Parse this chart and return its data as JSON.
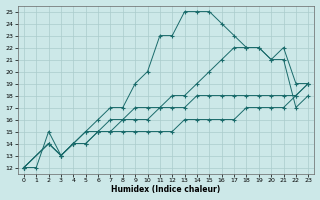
{
  "xlabel": "Humidex (Indice chaleur)",
  "bg_color": "#cce8e8",
  "grid_color": "#aacccc",
  "line_color": "#1a6b6b",
  "xlim": [
    -0.5,
    23.5
  ],
  "ylim": [
    11.5,
    25.5
  ],
  "xticks": [
    0,
    1,
    2,
    3,
    4,
    5,
    6,
    7,
    8,
    9,
    10,
    11,
    12,
    13,
    14,
    15,
    16,
    17,
    18,
    19,
    20,
    21,
    22,
    23
  ],
  "yticks": [
    12,
    13,
    14,
    15,
    16,
    17,
    18,
    19,
    20,
    21,
    22,
    23,
    24,
    25
  ],
  "series": [
    {
      "x": [
        0,
        1,
        2,
        3,
        4,
        5,
        6,
        7,
        8,
        9,
        10,
        11,
        12,
        13,
        14,
        15,
        16,
        17,
        18,
        19,
        20,
        21,
        22,
        23
      ],
      "y": [
        12,
        12,
        15,
        13,
        14,
        15,
        16,
        17,
        17,
        19,
        20,
        23,
        23,
        25,
        25,
        25,
        24,
        23,
        22,
        22,
        21,
        21,
        17,
        18
      ]
    },
    {
      "x": [
        0,
        2,
        3,
        4,
        5,
        6,
        7,
        8,
        9,
        10,
        11,
        12,
        13,
        14,
        15,
        16,
        17,
        18,
        19,
        20,
        21,
        22,
        23
      ],
      "y": [
        12,
        14,
        13,
        14,
        15,
        15,
        16,
        16,
        17,
        17,
        17,
        18,
        18,
        19,
        20,
        21,
        22,
        22,
        22,
        21,
        22,
        19,
        19
      ]
    },
    {
      "x": [
        0,
        2,
        3,
        4,
        5,
        6,
        7,
        8,
        9,
        10,
        11,
        12,
        13,
        14,
        15,
        16,
        17,
        18,
        19,
        20,
        21,
        22,
        23
      ],
      "y": [
        12,
        14,
        13,
        14,
        14,
        15,
        15,
        16,
        16,
        16,
        17,
        17,
        17,
        18,
        18,
        18,
        18,
        18,
        18,
        18,
        18,
        18,
        19
      ]
    },
    {
      "x": [
        0,
        2,
        3,
        4,
        5,
        6,
        7,
        8,
        9,
        10,
        11,
        12,
        13,
        14,
        15,
        16,
        17,
        18,
        19,
        20,
        21,
        22,
        23
      ],
      "y": [
        12,
        14,
        13,
        14,
        14,
        15,
        15,
        15,
        15,
        15,
        15,
        15,
        16,
        16,
        16,
        16,
        16,
        17,
        17,
        17,
        17,
        18,
        19
      ]
    }
  ]
}
